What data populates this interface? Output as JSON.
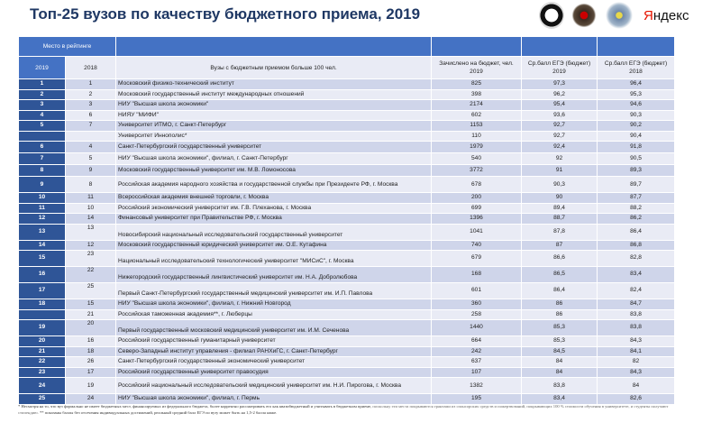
{
  "title": "Топ-25 вузов по качеству бюджетного приема, 2019",
  "logos": {
    "brand": "Яндекс",
    "brand_first": "Я",
    "brand_rest": "ндекс"
  },
  "colors": {
    "header": "#4472c4",
    "rank_column": "#2f5597",
    "row_a": "#cfd5ea",
    "row_b": "#e9ebf5",
    "title": "#1f3864"
  },
  "table": {
    "group_header": "Место в рейтинге",
    "headers": [
      "2019",
      "2018",
      "Вузы с бюджетным приемом больше 100 чел.",
      "Зачислено на бюджет, чел. 2019",
      "Ср.балл ЕГЭ (бюджет) 2019",
      "Ср.балл ЕГЭ (бюджет) 2018"
    ],
    "rows": [
      [
        "1",
        "1",
        "Московский физико-технический институт",
        "825",
        "97,3",
        "96,4"
      ],
      [
        "2",
        "2",
        "Московский государственный институт международных отношений",
        "398",
        "96,2",
        "95,3"
      ],
      [
        "3",
        "3",
        "НИУ \"Высшая школа экономики\"",
        "2174",
        "95,4",
        "94,6"
      ],
      [
        "4",
        "6",
        "НИЯУ \"МИФИ\"",
        "602",
        "93,6",
        "90,3"
      ],
      [
        "5",
        "7",
        "Университет ИТМО, г. Санкт-Петербург",
        "1153",
        "92,7",
        "90,2"
      ],
      [
        "",
        "",
        "Университет Иннополис*",
        "110",
        "92,7",
        "90,4"
      ],
      [
        "6",
        "4",
        "Санкт-Петербургский государственный университет",
        "1979",
        "92,4",
        "91,8"
      ],
      [
        "7",
        "5",
        "НИУ \"Высшая школа экономики\", филиал, г. Санкт-Петербург",
        "540",
        "92",
        "90,5"
      ],
      [
        "8",
        "9",
        "Московский государственный университет им. М.В. Ломоносова",
        "3772",
        "91",
        "89,3"
      ],
      [
        "9",
        "8",
        "Российская академия народного хозяйства и государственной службы при Президенте РФ, г. Москва",
        "678",
        "90,3",
        "89,7"
      ],
      [
        "10",
        "11",
        "Всероссийская академия внешней торговли, г. Москва",
        "200",
        "90",
        "87,7"
      ],
      [
        "11",
        "10",
        "Российский  экономический университет им. Г.В. Плеханова, г. Москва",
        "699",
        "89,4",
        "88,2"
      ],
      [
        "12",
        "14",
        "Финансовый университет при Правительстве РФ, г. Москва",
        "1396",
        "88,7",
        "86,2"
      ],
      [
        "13",
        "13",
        "Новосибирский национальный исследовательский государственный университет",
        "1041",
        "87,8",
        "86,4"
      ],
      [
        "14",
        "12",
        "Московский государственный юридический университет им. О.Е. Кутафина",
        "740",
        "87",
        "86,8"
      ],
      [
        "15",
        "23",
        "Национальный исследовательский технологический университет \"МИСиС\", г. Москва",
        "679",
        "86,6",
        "82,8"
      ],
      [
        "16",
        "22",
        "Нижегородский государственный лингвистический университет им.  Н.А. Добролюбова",
        "168",
        "86,5",
        "83,4"
      ],
      [
        "17",
        "25",
        "Первый Санкт-Петербургский государственный медицинский университет им. И.П. Павлова",
        "601",
        "86,4",
        "82,4"
      ],
      [
        "18",
        "15",
        "НИУ \"Высшая школа экономики\", филиал, г. Нижний  Новгород",
        "360",
        "86",
        "84,7"
      ],
      [
        "",
        "21",
        "Российская таможенная академия**, г. Люберцы",
        "258",
        "86",
        "83,8"
      ],
      [
        "19",
        "20",
        "Первый государственный московский медицинский университет им. И.М. Сеченова",
        "1440",
        "85,3",
        "83,8"
      ],
      [
        "20",
        "16",
        "Российский  государственный гуманитарный университет",
        "664",
        "85,3",
        "84,3"
      ],
      [
        "21",
        "18",
        "Северо-Западный институт управления - филиал РАНХиГС,  г. Санкт-Петербург",
        "242",
        "84,5",
        "84,1"
      ],
      [
        "22",
        "26",
        "Санкт-Петербургский государственный экономический университет",
        "637",
        "84",
        "82"
      ],
      [
        "23",
        "17",
        "Российский  государственный университет правосудия",
        "107",
        "84",
        "84,3"
      ],
      [
        "24",
        "19",
        "Российский  национальный исследовательский медицинский университет им. Н.И. Пирогова, г. Москва",
        "1382",
        "83,8",
        "84"
      ],
      [
        "25",
        "24",
        "НИУ \"Высшая школа экономики\", филиал, г. Пермь",
        "195",
        "83,4",
        "82,6"
      ]
    ]
  },
  "footnote": {
    "part1": "* Несмотря на то, что вуз формально не имеет бюджетных мест, финансируемых из федерального бюджета, более корректно рассматривать его как квазибюджетный и учитывать в бюджетном приеме,",
    "part2": " поскольку эти места покрываются грантами из спонсорских средств и пожертвований,  покрывающих 100 % стоимости обучения в университете,  и студенты  получают стипендию.",
    "part3": "   ** показаны баллы без отсечения индивидуальных достижений, реальный средний балл ЕГЭ по вузу может быть на 1,5-2 балла ниже."
  }
}
